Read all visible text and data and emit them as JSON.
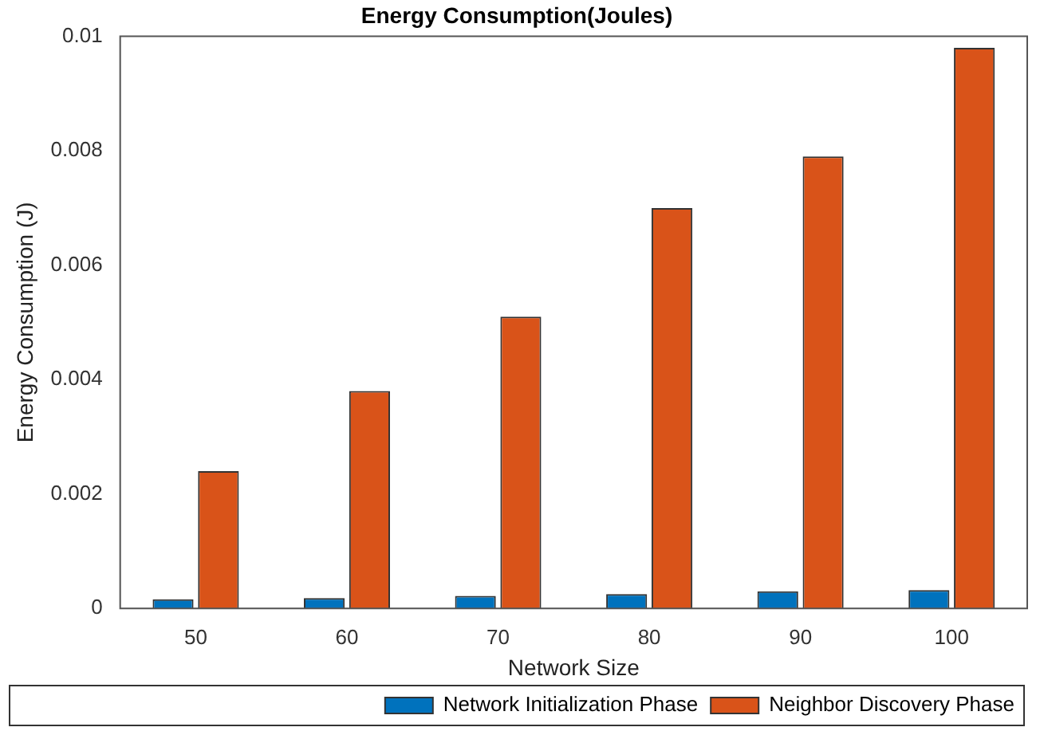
{
  "chart_data": {
    "type": "bar",
    "title": "Energy Consumption(Joules)",
    "xlabel": "Network Size",
    "ylabel": "Energy Consumption (J)",
    "categories": [
      "50",
      "60",
      "70",
      "80",
      "90",
      "100"
    ],
    "series": [
      {
        "name": "Network Initialization Phase",
        "color": "#0072bd",
        "values": [
          0.00016,
          0.00018,
          0.00022,
          0.00025,
          0.0003,
          0.00032
        ]
      },
      {
        "name": "Neighbor Discovery Phase",
        "color": "#d95319",
        "values": [
          0.0024,
          0.0038,
          0.0051,
          0.007,
          0.0079,
          0.0098
        ]
      }
    ],
    "ylim": [
      0,
      0.01
    ],
    "yticks": [
      0,
      0.002,
      0.004,
      0.006,
      0.008,
      0.01
    ],
    "grid": false,
    "legend": "bottom"
  }
}
